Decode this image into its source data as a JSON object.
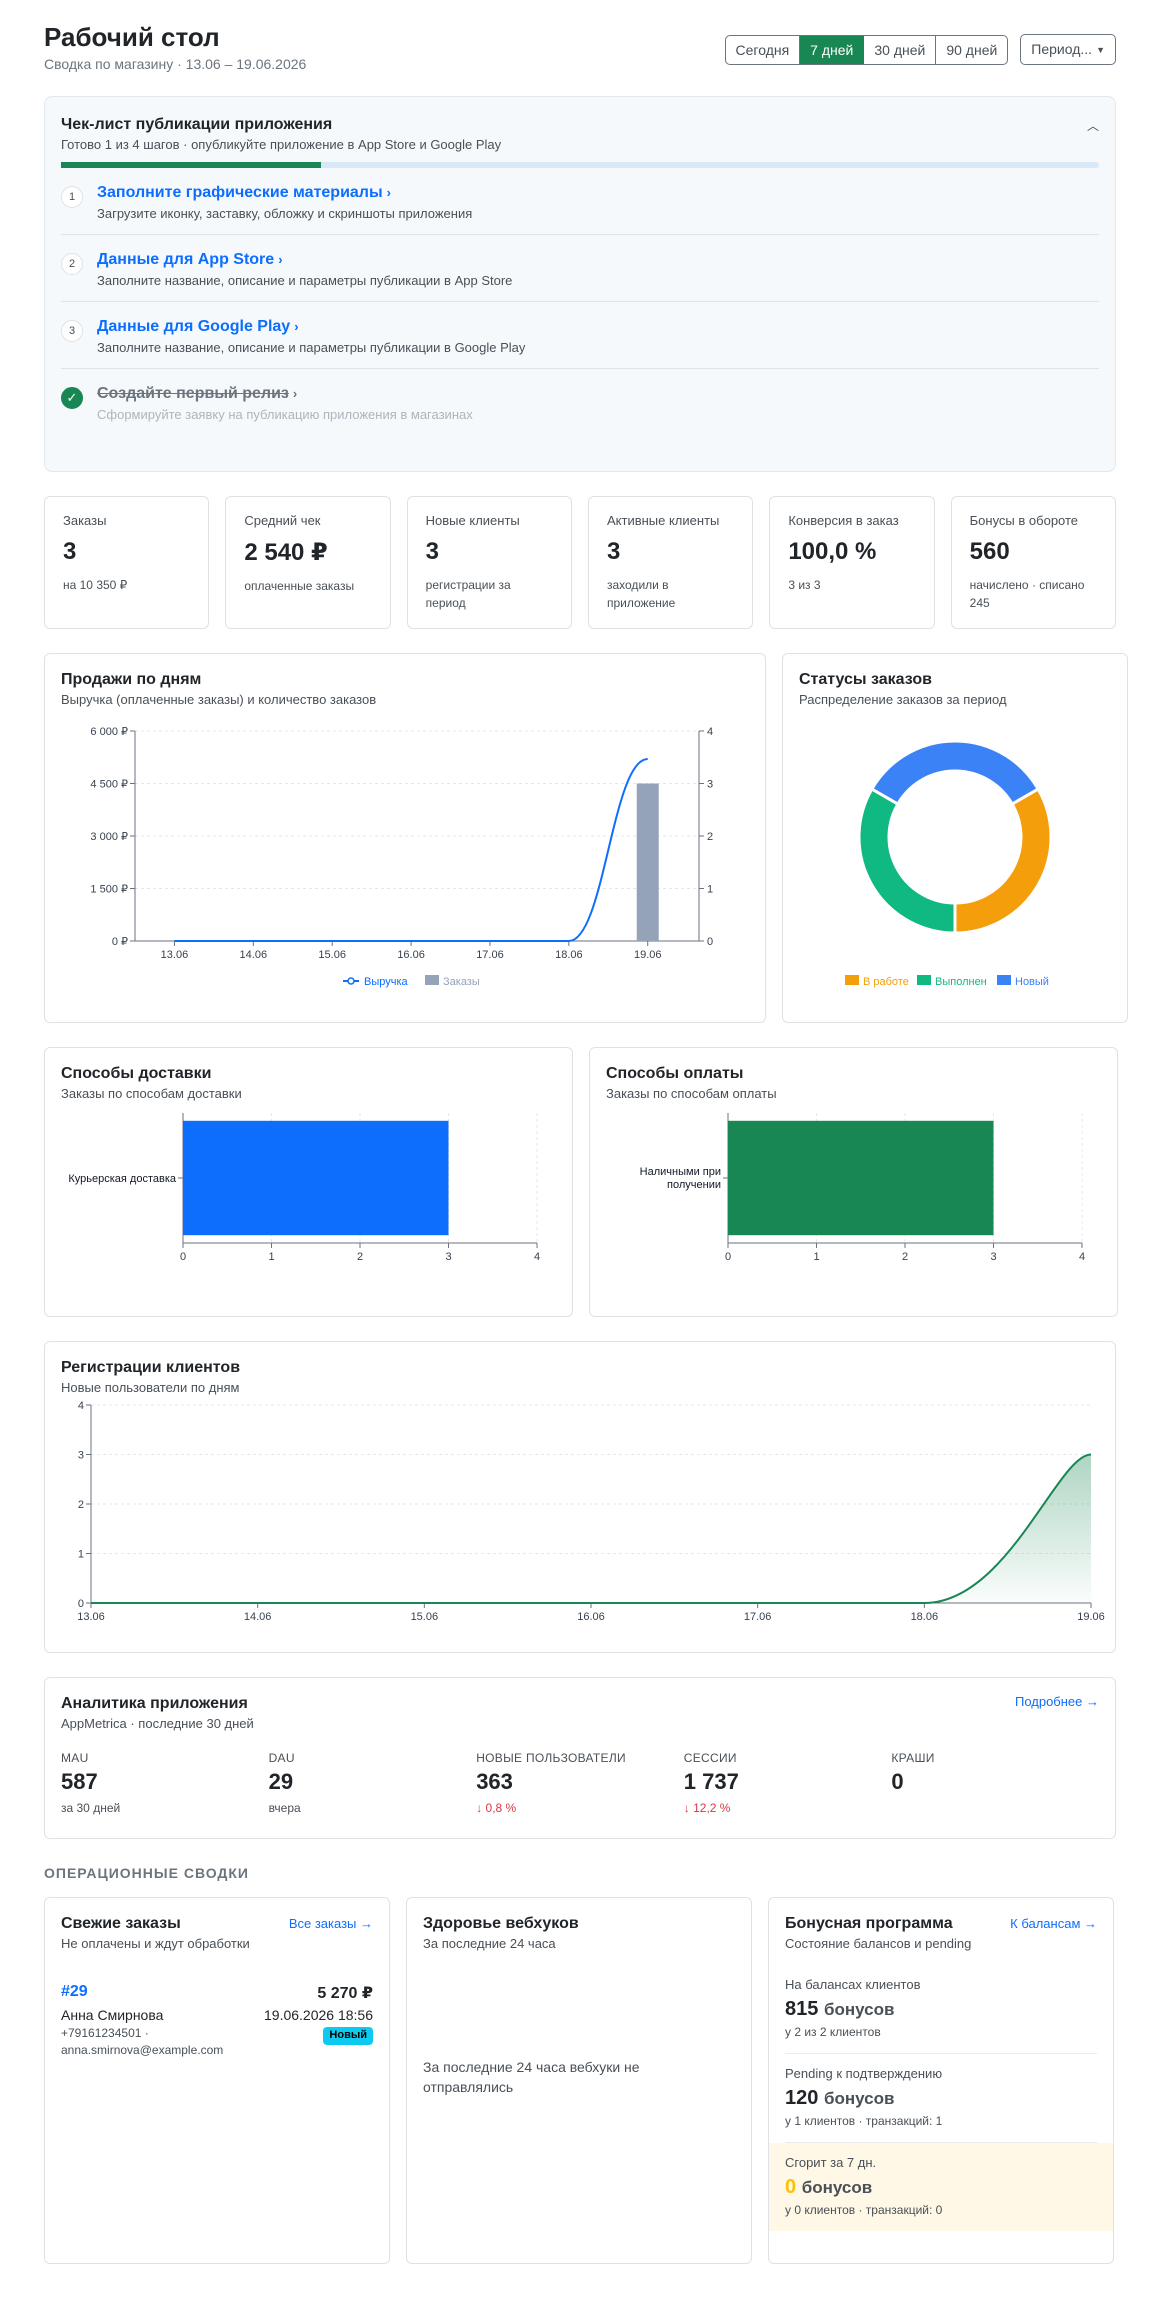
{
  "header": {
    "title": "Рабочий стол",
    "subtitle": "Сводка по магазину · 13.06 – 19.06.2026",
    "ranges": [
      "Сегодня",
      "7 дней",
      "30 дней",
      "90 дней"
    ],
    "active_range": "7 дней",
    "period_button": "Период..."
  },
  "checklist": {
    "title": "Чек-лист публикации приложения",
    "subtitle": "Готово 1 из 4 шагов · опубликуйте приложение в App Store и Google Play",
    "progress": 0.25,
    "steps": [
      {
        "num": "1",
        "title": "Заполните графические материалы",
        "desc": "Загрузите иконку, заставку, обложку и скриншоты приложения",
        "done": false
      },
      {
        "num": "2",
        "title": "Данные для App Store",
        "desc": "Заполните название, описание и параметры публикации в App Store",
        "done": false
      },
      {
        "num": "3",
        "title": "Данные для Google Play",
        "desc": "Заполните название, описание и параметры публикации в Google Play",
        "done": false
      },
      {
        "num": "✓",
        "title": "Создайте первый релиз",
        "desc": "Сформируйте заявку на публикацию приложения в магазинах",
        "done": true
      }
    ]
  },
  "kpis": [
    {
      "label": "Заказы",
      "value": "3",
      "note": "на 10 350 ₽"
    },
    {
      "label": "Средний чек",
      "value": "2 540 ₽",
      "note": "оплаченные заказы"
    },
    {
      "label": "Новые клиенты",
      "value": "3",
      "note": "регистрации за период"
    },
    {
      "label": "Активные клиенты",
      "value": "3",
      "note": "заходили в приложение"
    },
    {
      "label": "Конверсия в заказ",
      "value": "100,0 %",
      "note": "3 из 3"
    },
    {
      "label": "Бонусы в обороте",
      "value": "560",
      "note": "начислено · списано 245"
    }
  ],
  "sales": {
    "title": "Продажи по дням",
    "subtitle": "Выручка (оплаченные заказы) и количество заказов"
  },
  "status": {
    "title": "Статусы заказов",
    "subtitle": "Распределение заказов за период"
  },
  "delivery": {
    "title": "Способы доставки",
    "subtitle": "Заказы по способам доставки"
  },
  "payment": {
    "title": "Способы оплаты",
    "subtitle": "Заказы по способам оплаты"
  },
  "registrations": {
    "title": "Регистрации клиентов",
    "subtitle": "Новые пользователи по дням"
  },
  "chart_data": [
    {
      "type": "bar",
      "title": "Продажи по дням",
      "categories": [
        "13.06",
        "14.06",
        "15.06",
        "16.06",
        "17.06",
        "18.06",
        "19.06"
      ],
      "series": [
        {
          "name": "Выручка",
          "type": "line",
          "axis": "left",
          "values": [
            0,
            0,
            0,
            0,
            0,
            0,
            5200
          ],
          "color": "#0d6efd"
        },
        {
          "name": "Заказы",
          "type": "bar",
          "axis": "right",
          "values": [
            0,
            0,
            0,
            0,
            0,
            0,
            3
          ],
          "color": "#94a3b8"
        }
      ],
      "ylim_left": [
        0,
        6000
      ],
      "yticks_left": [
        "0 ₽",
        "1 500 ₽",
        "3 000 ₽",
        "4 500 ₽",
        "6 000 ₽"
      ],
      "ylim_right": [
        0,
        4
      ],
      "yticks_right": [
        "0",
        "1",
        "2",
        "3",
        "4"
      ],
      "legend": "bottom"
    },
    {
      "type": "pie",
      "title": "Статусы заказов",
      "categories": [
        "В работе",
        "Выполнен",
        "Новый"
      ],
      "values": [
        1,
        1,
        1
      ],
      "colors": [
        "#f59e0b",
        "#10b981",
        "#3b82f6"
      ],
      "legend": "bottom"
    },
    {
      "type": "bar",
      "title": "Способы доставки",
      "orientation": "horizontal",
      "categories": [
        "Курьерская доставка"
      ],
      "values": [
        3
      ],
      "xlim": [
        0,
        4
      ],
      "xticks": [
        "0",
        "1",
        "2",
        "3",
        "4"
      ],
      "color": "#0d6efd"
    },
    {
      "type": "bar",
      "title": "Способы оплаты",
      "orientation": "horizontal",
      "categories": [
        "Наличными при получении"
      ],
      "values": [
        3
      ],
      "xlim": [
        0,
        4
      ],
      "xticks": [
        "0",
        "1",
        "2",
        "3",
        "4"
      ],
      "color": "#198754"
    },
    {
      "type": "area",
      "title": "Регистрации клиентов",
      "x": [
        "13.06",
        "14.06",
        "15.06",
        "16.06",
        "17.06",
        "18.06",
        "19.06"
      ],
      "values": [
        0,
        0,
        0,
        0,
        0,
        0,
        3
      ],
      "ylim": [
        0,
        4
      ],
      "yticks": [
        "0",
        "1",
        "2",
        "3",
        "4"
      ],
      "color": "#198754"
    }
  ],
  "analytics": {
    "title": "Аналитика приложения",
    "subtitle": "AppMetrica · последние 30 дней",
    "link": "Подробнее →",
    "metrics": [
      {
        "label": "MAU",
        "value": "587",
        "note": "за 30 дней",
        "down": false
      },
      {
        "label": "DAU",
        "value": "29",
        "note": "вчера",
        "down": false
      },
      {
        "label": "НОВЫЕ ПОЛЬЗОВАТЕЛИ",
        "value": "363",
        "note": "↓ 0,8 %",
        "down": true
      },
      {
        "label": "СЕССИИ",
        "value": "1 737",
        "note": "↓ 12,2 %",
        "down": true
      },
      {
        "label": "КРАШИ",
        "value": "0",
        "note": "",
        "down": false
      }
    ]
  },
  "ops": {
    "section_title": "ОПЕРАЦИОННЫЕ СВОДКИ",
    "orders": {
      "title": "Свежие заказы",
      "subtitle": "Не оплачены и ждут обработки",
      "link": "Все заказы →",
      "item": {
        "id": "#29",
        "amount": "5 270 ₽",
        "name": "Анна Смирнова",
        "date": "19.06.2026 18:56",
        "contact": "+79161234501 · anna.smirnova@example.com",
        "status": "Новый"
      }
    },
    "webhooks": {
      "title": "Здоровье вебхуков",
      "subtitle": "За последние 24 часа",
      "empty": "За последние 24 часа вебхуки не отправлялись"
    },
    "bonus": {
      "title": "Бонусная программа",
      "subtitle": "Состояние балансов и pending",
      "link": "К балансам →",
      "unit": "бонусов",
      "balance_label": "На балансах клиентов",
      "balance_value": "815",
      "balance_note": "у 2 из 2 клиентов",
      "pending_label": "Pending к подтверждению",
      "pending_value": "120",
      "pending_note": "у 1 клиентов · транзакций: 1",
      "burn_label": "Сгорит за 7 дн.",
      "burn_value": "0",
      "burn_note": "у 0 клиентов · транзакций: 0"
    }
  }
}
